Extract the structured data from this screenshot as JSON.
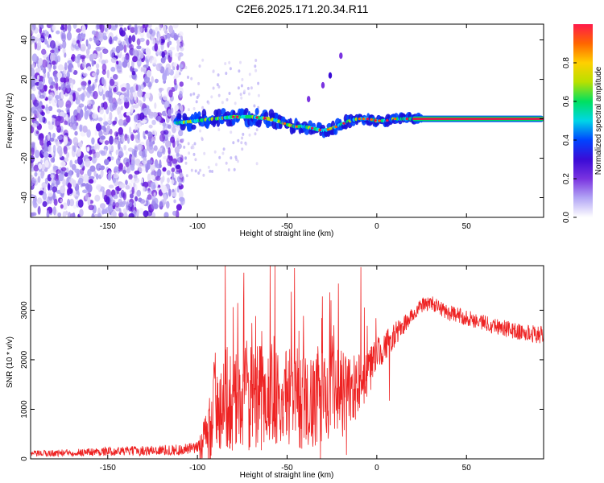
{
  "title": "C2E6.2025.171.20.34.R11",
  "colors": {
    "signal_line": "#ee2222",
    "ridge": "#e8114a",
    "background": "#ffffff"
  },
  "chart_data": [
    {
      "type": "heatmap",
      "xlabel": "Height of straight line (km)",
      "ylabel": "Frequency (Hz)",
      "xlim": [
        -193,
        93
      ],
      "ylim": [
        -50,
        48
      ],
      "x_ticks": [
        -150,
        -100,
        -50,
        0,
        50
      ],
      "y_ticks": [
        -40,
        -20,
        0,
        20,
        40
      ],
      "colorbar": {
        "label": "Normalized spectral amplitude",
        "range": [
          0,
          1
        ],
        "ticks": [
          "0.0",
          "0.2",
          "0.4",
          "0.6",
          "0.8"
        ],
        "tick_values": [
          0.0,
          0.2,
          0.4,
          0.6,
          0.8
        ],
        "colormap": [
          "#ffffff",
          "#b3a6f5",
          "#7a33e0",
          "#3a0bd6",
          "#0044ff",
          "#00d6e6",
          "#00e060",
          "#b8e000",
          "#ffd000",
          "#ff6600",
          "#ff1a4a"
        ]
      },
      "noise_region_x": [
        -193,
        -108
      ],
      "ridge": {
        "x": [
          -110,
          -100,
          -90,
          -80,
          -70,
          -60,
          -55,
          -50,
          -45,
          -40,
          -35,
          -30,
          -25,
          -20,
          -15,
          -10,
          -5,
          0,
          5,
          10,
          15,
          20,
          50,
          93
        ],
        "y": [
          -2,
          -1,
          0,
          1,
          1,
          0,
          -1,
          -3,
          -4,
          -4,
          -5,
          -6,
          -5,
          -3,
          -1,
          0,
          0,
          -1,
          -1,
          0,
          0,
          0,
          0,
          0
        ]
      },
      "diagonal_feature": {
        "x": [
          -38,
          -30,
          -26,
          -20
        ],
        "y": [
          10,
          17,
          22,
          32
        ]
      }
    },
    {
      "type": "line",
      "xlabel": "Height of straight line (km)",
      "ylabel": "SNR (10 * v/v)",
      "xlim": [
        -193,
        93
      ],
      "ylim": [
        0,
        3900
      ],
      "x_ticks": [
        -150,
        -100,
        -50,
        0,
        50
      ],
      "y_ticks": [
        0,
        1000,
        2000,
        3000
      ],
      "series_envelope": {
        "x": [
          -193,
          -150,
          -110,
          -100,
          -95,
          -92,
          -90,
          -85,
          -80,
          -70,
          -60,
          -50,
          -40,
          -30,
          -20,
          -10,
          -5,
          0,
          5,
          10,
          15,
          20,
          25,
          30,
          35,
          40,
          50,
          60,
          70,
          80,
          93
        ],
        "y": [
          100,
          150,
          180,
          220,
          400,
          900,
          1200,
          1200,
          1200,
          1200,
          1250,
          1250,
          1200,
          1250,
          1300,
          1500,
          1700,
          2100,
          2300,
          2500,
          2700,
          2900,
          3100,
          3150,
          3050,
          2950,
          2850,
          2750,
          2650,
          2550,
          2500
        ]
      },
      "noise_amplitude_by_x": {
        "x": [
          -193,
          -100,
          -92,
          -60,
          -20,
          0,
          20,
          93
        ],
        "y": [
          60,
          120,
          1000,
          1100,
          900,
          350,
          150,
          180
        ]
      }
    }
  ]
}
